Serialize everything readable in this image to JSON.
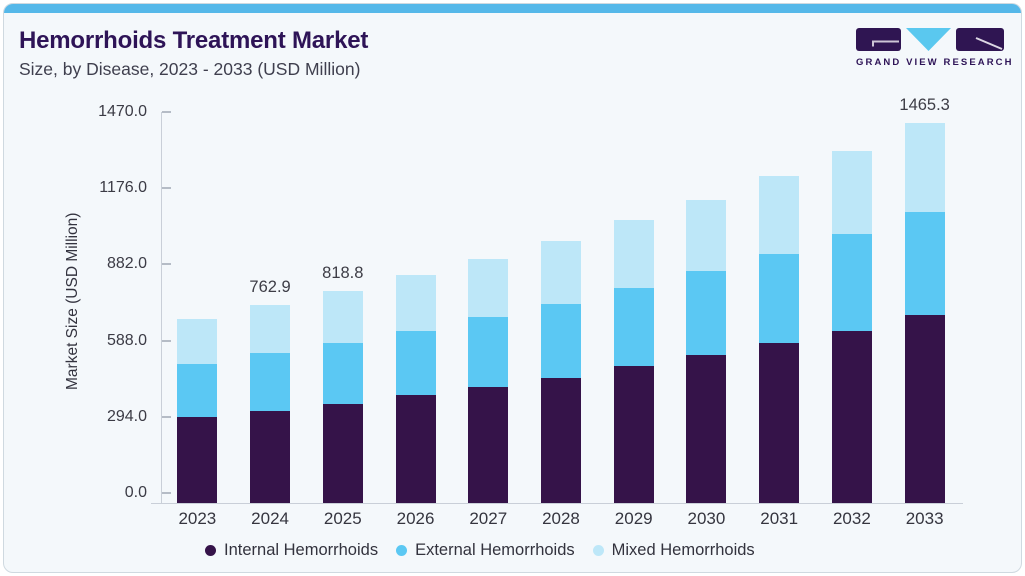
{
  "header": {
    "title": "Hemorrhoids Treatment Market",
    "subtitle": "Size, by Disease, 2023 - 2033 (USD Million)"
  },
  "logo": {
    "text": "GRAND VIEW RESEARCH",
    "block_color": "#2f1552",
    "triangle_color": "#5ac8ef"
  },
  "chart_data": {
    "type": "bar",
    "stacked": true,
    "title": "Hemorrhoids Treatment Market Size, by Disease, 2023 - 2033 (USD Million)",
    "ylabel": "Market Size (USD Million)",
    "ylim": [
      0,
      1470
    ],
    "yticks": [
      "0.0",
      "294.0",
      "588.0",
      "882.0",
      "1176.0",
      "1470.0"
    ],
    "ytick_values": [
      0,
      294,
      588,
      882,
      1176,
      1470
    ],
    "grid": "off",
    "legend_position": "bottom",
    "categories": [
      "2023",
      "2024",
      "2025",
      "2026",
      "2027",
      "2028",
      "2029",
      "2030",
      "2031",
      "2032",
      "2033"
    ],
    "series": [
      {
        "name": "Internal Hemorrhoids",
        "color": "#351349",
        "values": [
          330.0,
          356.0,
          383.0,
          416.0,
          447.0,
          484.0,
          527.0,
          570.0,
          617.0,
          663.0,
          726.0
        ]
      },
      {
        "name": "External Hemorrhoids",
        "color": "#5bc8f3",
        "values": [
          206.0,
          222.0,
          235.0,
          249.0,
          269.0,
          285.0,
          302.0,
          326.0,
          343.0,
          375.0,
          397.0
        ]
      },
      {
        "name": "Mixed Hemorrhoids",
        "color": "#bde7f8",
        "values": [
          172.0,
          184.9,
          200.8,
          213.0,
          224.0,
          241.0,
          261.0,
          274.0,
          300.0,
          321.0,
          342.3
        ]
      }
    ],
    "totals": [
      708.0,
      762.9,
      818.8,
      878.0,
      940.0,
      1010.0,
      1090.0,
      1170.0,
      1260.0,
      1359.0,
      1465.3
    ],
    "bar_labels": [
      {
        "category": "2024",
        "label": "762.9"
      },
      {
        "category": "2025",
        "label": "818.8"
      },
      {
        "category": "2033",
        "label": "1465.3"
      }
    ]
  },
  "colors": {
    "card_background": "#f4f8fb",
    "accent_bar": "#55b8e9",
    "title": "#2e1457",
    "axis_line": "#c9cfd8"
  }
}
